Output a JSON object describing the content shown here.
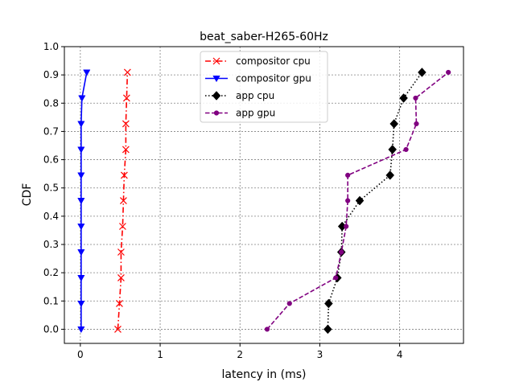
{
  "chart_data": {
    "type": "line",
    "title": "beat_saber-H265-60Hz",
    "xlabel": "latency in (ms)",
    "ylabel": "CDF",
    "xlim": [
      -0.2,
      4.8
    ],
    "ylim": [
      -0.05,
      1.0
    ],
    "xticks": [
      0,
      1,
      2,
      3,
      4
    ],
    "yticks": [
      0.0,
      0.1,
      0.2,
      0.3,
      0.4,
      0.5,
      0.6,
      0.7,
      0.8,
      0.9,
      1.0
    ],
    "xtick_labels": [
      "0",
      "1",
      "2",
      "3",
      "4"
    ],
    "ytick_labels": [
      "0.0",
      "0.1",
      "0.2",
      "0.3",
      "0.4",
      "0.5",
      "0.6",
      "0.7",
      "0.8",
      "0.9",
      "1.0"
    ],
    "grid": true,
    "legend_position": "top-center",
    "series": [
      {
        "name": "compositor cpu",
        "color": "#ff0000",
        "marker": "x",
        "line_style": "dashdot",
        "x": [
          0.47,
          0.49,
          0.51,
          0.51,
          0.53,
          0.54,
          0.55,
          0.57,
          0.57,
          0.58,
          0.59
        ],
        "y": [
          0.0,
          0.091,
          0.182,
          0.273,
          0.364,
          0.455,
          0.545,
          0.636,
          0.727,
          0.818,
          0.909
        ]
      },
      {
        "name": "compositor gpu",
        "color": "#0000ff",
        "marker": "triangle-down",
        "line_style": "solid",
        "x": [
          0.01,
          0.01,
          0.01,
          0.01,
          0.01,
          0.01,
          0.01,
          0.01,
          0.01,
          0.02,
          0.08
        ],
        "y": [
          0.0,
          0.091,
          0.182,
          0.273,
          0.364,
          0.455,
          0.545,
          0.636,
          0.727,
          0.818,
          0.909
        ]
      },
      {
        "name": "app cpu",
        "color": "#000000",
        "marker": "diamond",
        "line_style": "dotted",
        "x": [
          3.1,
          3.11,
          3.22,
          3.27,
          3.28,
          3.5,
          3.88,
          3.91,
          3.93,
          4.05,
          4.28
        ],
        "y": [
          0.0,
          0.091,
          0.182,
          0.273,
          0.364,
          0.455,
          0.545,
          0.636,
          0.727,
          0.818,
          0.909
        ]
      },
      {
        "name": "app gpu",
        "color": "#800080",
        "marker": "circle",
        "line_style": "dashed",
        "x": [
          2.34,
          2.62,
          3.2,
          3.27,
          3.33,
          3.35,
          3.35,
          4.08,
          4.21,
          4.2,
          4.61
        ],
        "y": [
          0.0,
          0.091,
          0.182,
          0.273,
          0.364,
          0.455,
          0.545,
          0.636,
          0.727,
          0.818,
          0.909
        ]
      }
    ]
  }
}
